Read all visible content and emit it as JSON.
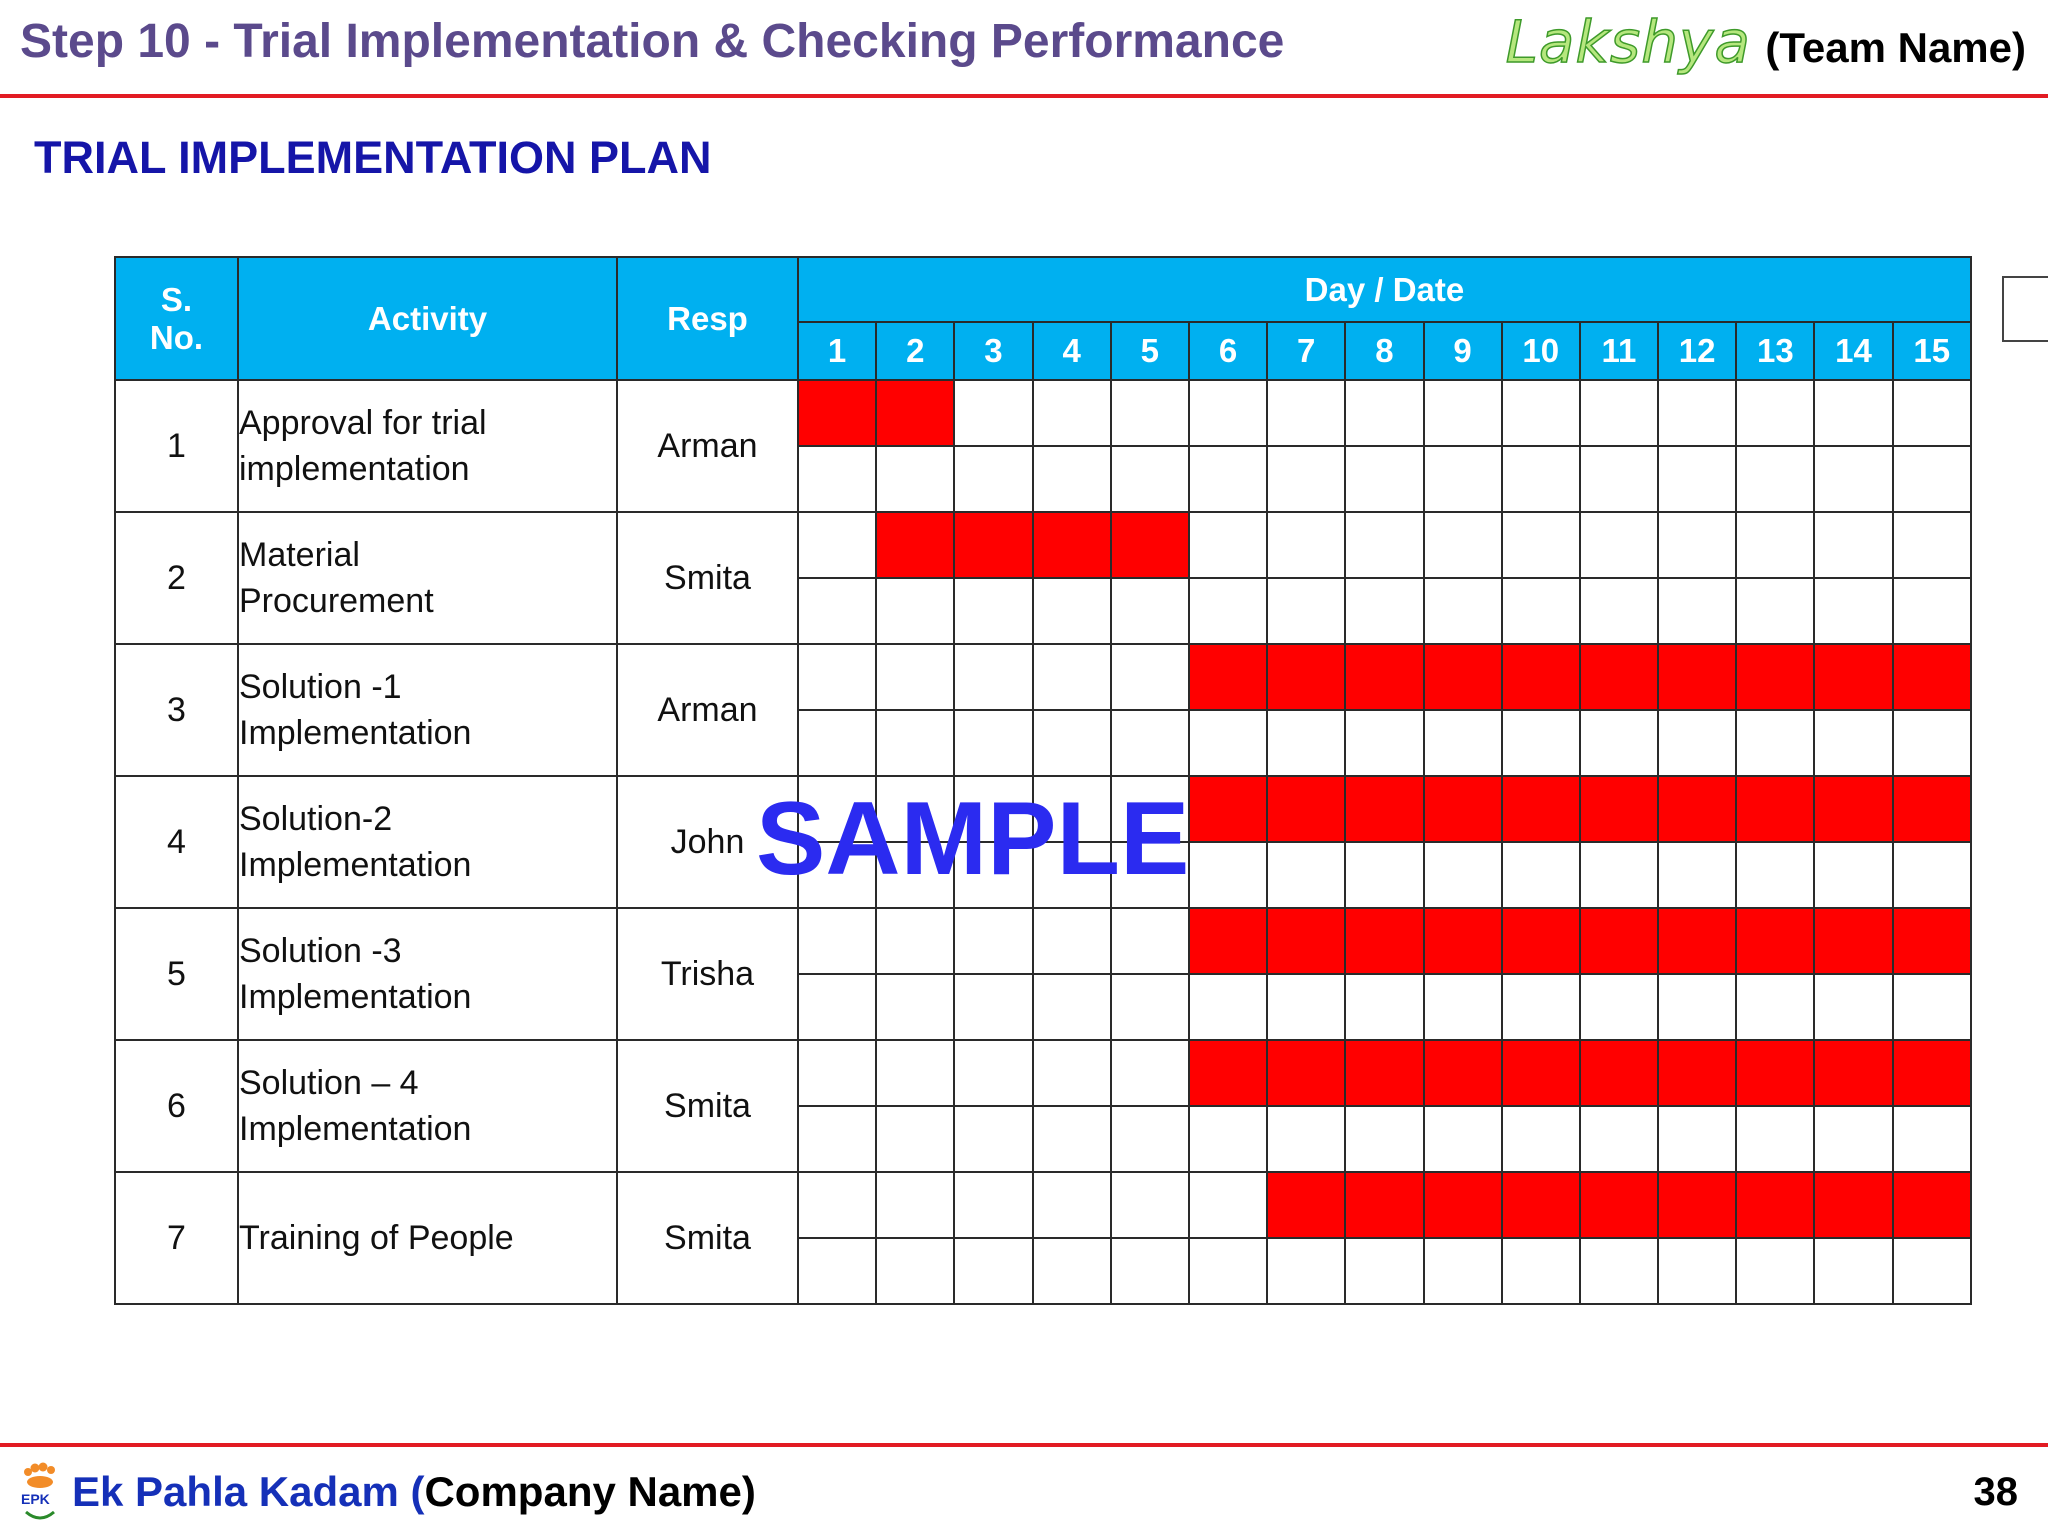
{
  "header": {
    "title": "Step 10 - Trial Implementation & Checking Performance",
    "team_logo": "Lakshya",
    "team_label": "(Team Name)"
  },
  "section_title": "TRIAL IMPLEMENTATION PLAN",
  "table": {
    "headers": {
      "sno_line1": "S.",
      "sno_line2": "No.",
      "activity": "Activity",
      "resp": "Resp",
      "day_date": "Day / Date"
    },
    "days": [
      "1",
      "2",
      "3",
      "4",
      "5",
      "6",
      "7",
      "8",
      "9",
      "10",
      "11",
      "12",
      "13",
      "14",
      "15"
    ],
    "rows": [
      {
        "sno": "1",
        "activity_line1": "Approval for trial",
        "activity_line2": "implementation",
        "resp": "Arman",
        "active_days": [
          1,
          2
        ]
      },
      {
        "sno": "2",
        "activity_line1": "Material",
        "activity_line2": "Procurement",
        "resp": "Smita",
        "active_days": [
          2,
          3,
          4,
          5
        ]
      },
      {
        "sno": "3",
        "activity_line1": "Solution -1",
        "activity_line2": "Implementation",
        "resp": "Arman",
        "active_days": [
          6,
          7,
          8,
          9,
          10,
          11,
          12,
          13,
          14,
          15
        ]
      },
      {
        "sno": "4",
        "activity_line1": "Solution-2",
        "activity_line2": "Implementation",
        "resp": "John",
        "active_days": [
          6,
          7,
          8,
          9,
          10,
          11,
          12,
          13,
          14,
          15
        ]
      },
      {
        "sno": "5",
        "activity_line1": "Solution -3",
        "activity_line2": "Implementation",
        "resp": "Trisha",
        "active_days": [
          6,
          7,
          8,
          9,
          10,
          11,
          12,
          13,
          14,
          15
        ]
      },
      {
        "sno": "6",
        "activity_line1": "Solution – 4",
        "activity_line2": "Implementation",
        "resp": "Smita",
        "active_days": [
          6,
          7,
          8,
          9,
          10,
          11,
          12,
          13,
          14,
          15
        ]
      },
      {
        "sno": "7",
        "activity_line1": "Training of People",
        "activity_line2": "",
        "resp": "Smita",
        "active_days": [
          7,
          8,
          9,
          10,
          11,
          12,
          13,
          14,
          15
        ]
      }
    ]
  },
  "watermark": "SAMPLE",
  "footer": {
    "logo_text": "EPK",
    "company_name": "Ek Pahla Kadam",
    "company_paren_open": " (",
    "company_label": "Company Name)",
    "page_number": "38"
  },
  "colors": {
    "title": "#5b4a8c",
    "section_title": "#1515a8",
    "header_fill": "#00b0f0",
    "bar_fill": "#ff0000",
    "rule": "#e21b23",
    "watermark": "#2b2bf0"
  }
}
